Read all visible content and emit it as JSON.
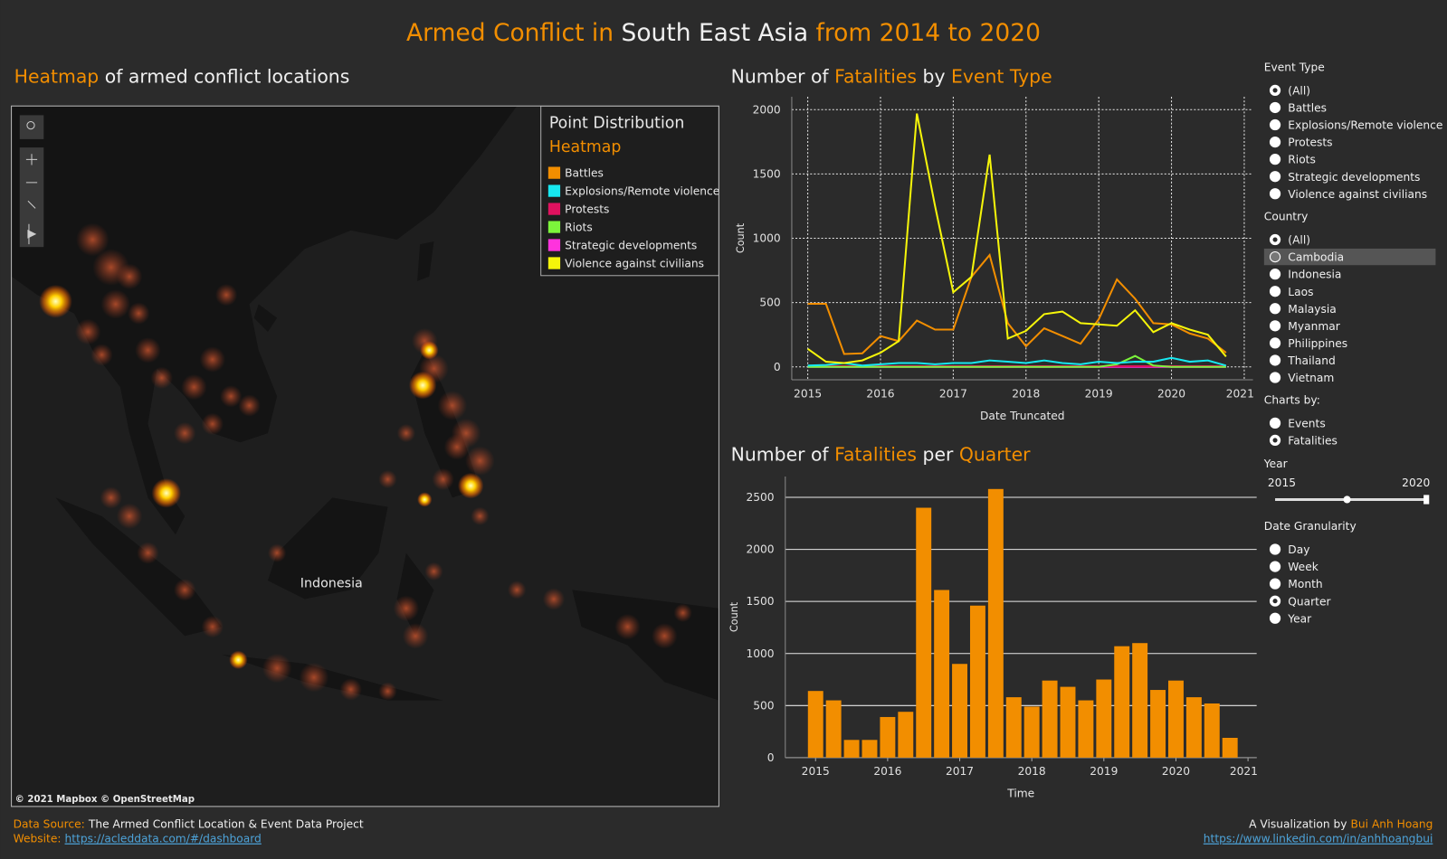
{
  "header": {
    "title": [
      "Armed Conflict in ",
      "South East Asia",
      " from 2014 to 2020"
    ]
  },
  "map": {
    "title": [
      "Heatmap",
      " of armed conflict locations"
    ],
    "label": "Indonesia",
    "attribution": "© 2021 Mapbox © OpenStreetMap",
    "legend": {
      "title": "Point Distribution",
      "subtitle": "Heatmap",
      "items": [
        {
          "name": "Battles",
          "color": "#f28e00"
        },
        {
          "name": "Explosions/Remote violence",
          "color": "#17e8f0"
        },
        {
          "name": "Protests",
          "color": "#e0115f"
        },
        {
          "name": "Riots",
          "color": "#7cf53b"
        },
        {
          "name": "Strategic developments",
          "color": "#ff33dd"
        },
        {
          "name": "Violence against civilians",
          "color": "#f5f50a"
        }
      ]
    }
  },
  "chart_data": [
    {
      "type": "line",
      "title": [
        "Number of ",
        "Fatalities",
        " by ",
        "Event Type"
      ],
      "x_label": "Date Truncated",
      "y_label": "Count",
      "x": [
        2015,
        2015.25,
        2015.5,
        2015.75,
        2016,
        2016.25,
        2016.5,
        2016.75,
        2017,
        2017.25,
        2017.5,
        2017.75,
        2018,
        2018.25,
        2018.5,
        2018.75,
        2019,
        2019.25,
        2019.5,
        2019.75,
        2020,
        2020.25,
        2020.5,
        2020.75
      ],
      "xlim": [
        2014.78,
        2021.12
      ],
      "xticks": [
        2015,
        2016,
        2017,
        2018,
        2019,
        2020,
        2021
      ],
      "ylim": [
        -100,
        2100
      ],
      "yticks": [
        0,
        500,
        1000,
        1500,
        2000
      ],
      "grid": true,
      "series": [
        {
          "name": "Strategic developments",
          "color": "#ff33dd",
          "values": [
            0,
            0,
            0,
            0,
            0,
            0,
            0,
            0,
            0,
            0,
            0,
            0,
            0,
            0,
            0,
            0,
            0,
            0,
            0,
            0,
            0,
            0,
            0,
            0
          ]
        },
        {
          "name": "Protests",
          "color": "#e0115f",
          "values": [
            5,
            5,
            5,
            5,
            5,
            5,
            5,
            5,
            5,
            5,
            5,
            5,
            5,
            5,
            5,
            5,
            5,
            5,
            5,
            5,
            5,
            5,
            5,
            5
          ]
        },
        {
          "name": "Riots",
          "color": "#7cf53b",
          "values": [
            0,
            0,
            0,
            0,
            0,
            0,
            0,
            0,
            0,
            0,
            0,
            0,
            0,
            0,
            0,
            0,
            0,
            20,
            85,
            10,
            0,
            0,
            0,
            0
          ]
        },
        {
          "name": "Explosions/Remote violence",
          "color": "#17e8f0",
          "values": [
            10,
            15,
            30,
            10,
            20,
            30,
            30,
            20,
            30,
            30,
            50,
            40,
            30,
            50,
            30,
            20,
            40,
            30,
            40,
            40,
            70,
            40,
            50,
            10
          ]
        },
        {
          "name": "Battles",
          "color": "#f28e00",
          "values": [
            490,
            490,
            100,
            105,
            240,
            200,
            360,
            290,
            290,
            700,
            870,
            340,
            160,
            300,
            240,
            180,
            370,
            680,
            530,
            340,
            330,
            260,
            220,
            110
          ]
        },
        {
          "name": "Violence against civilians",
          "color": "#f5f50a",
          "values": [
            140,
            40,
            30,
            50,
            110,
            200,
            1970,
            1250,
            580,
            700,
            1650,
            220,
            280,
            410,
            430,
            340,
            330,
            320,
            440,
            270,
            340,
            290,
            250,
            80
          ]
        }
      ]
    },
    {
      "type": "bar",
      "title": [
        "Number of ",
        "Fatalities",
        " per ",
        "Quarter"
      ],
      "x_label": "Time",
      "y_label": "Count",
      "color": "#f28e00",
      "x": [
        2015,
        2015.25,
        2015.5,
        2015.75,
        2016,
        2016.25,
        2016.5,
        2016.75,
        2017,
        2017.25,
        2017.5,
        2017.75,
        2018,
        2018.25,
        2018.5,
        2018.75,
        2019,
        2019.25,
        2019.5,
        2019.75,
        2020,
        2020.25,
        2020.5,
        2020.75
      ],
      "values": [
        640,
        550,
        170,
        170,
        390,
        440,
        2400,
        1610,
        900,
        1460,
        2580,
        580,
        490,
        740,
        680,
        550,
        750,
        1070,
        1100,
        650,
        740,
        580,
        520,
        190
      ],
      "xlim": [
        2014.58,
        2021.12
      ],
      "xticks": [
        2015,
        2016,
        2017,
        2018,
        2019,
        2020,
        2021
      ],
      "ylim": [
        0,
        2700
      ],
      "yticks": [
        0,
        500,
        1000,
        1500,
        2000,
        2500
      ],
      "grid": true
    }
  ],
  "filters": {
    "event_type": {
      "title": "Event Type",
      "selected": 0,
      "options": [
        "(All)",
        "Battles",
        "Explosions/Remote violence",
        "Protests",
        "Riots",
        "Strategic developments",
        "Violence against civilians"
      ]
    },
    "country": {
      "title": "Country",
      "selected": 0,
      "highlighted": 1,
      "options": [
        "(All)",
        "Cambodia",
        "Indonesia",
        "Laos",
        "Malaysia",
        "Myanmar",
        "Philippines",
        "Thailand",
        "Vietnam"
      ]
    },
    "charts_by": {
      "title": "Charts by:",
      "selected": 1,
      "options": [
        "Events",
        "Fatalities"
      ]
    },
    "year": {
      "title": "Year",
      "range": [
        2015,
        2020
      ]
    },
    "granularity": {
      "title": "Date Granularity",
      "selected": 3,
      "options": [
        "Day",
        "Week",
        "Month",
        "Quarter",
        "Year"
      ]
    }
  },
  "footer": {
    "source_label": "Data Source:",
    "source": "The Armed Conflict Location & Event Data Project",
    "website_label": "Website:",
    "website": "https://acleddata.com/#/dashboard",
    "credit_label": "A Visualization by",
    "author": "Bui Anh Hoang",
    "linkedin": "https://www.linkedin.com/in/anhhoangbui"
  }
}
